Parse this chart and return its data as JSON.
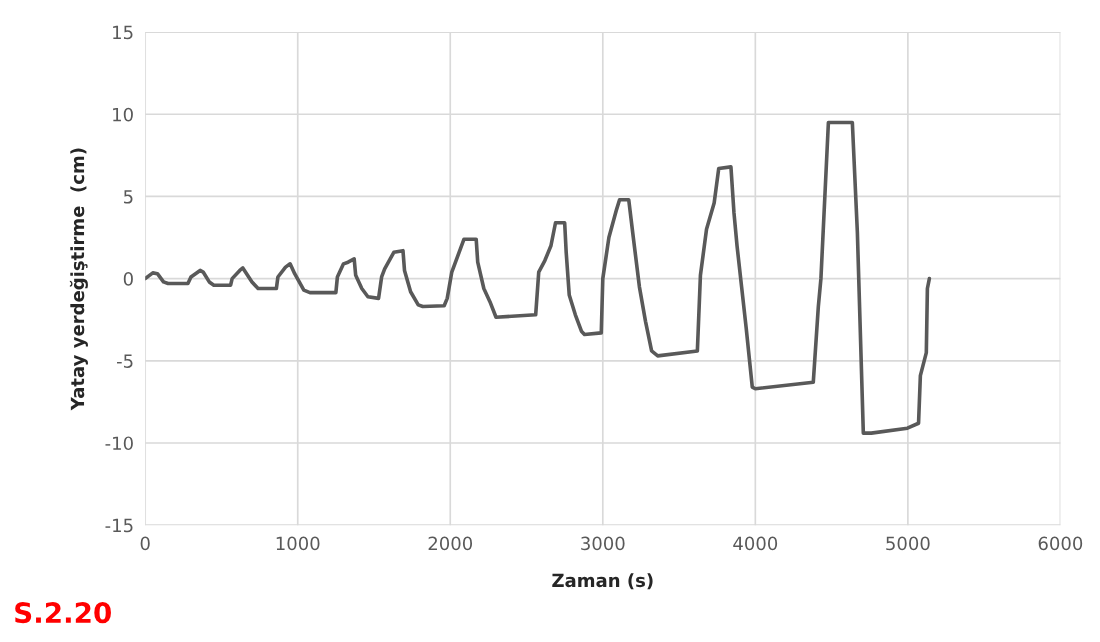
{
  "chart_data": {
    "type": "line",
    "xlabel": "Zaman (s)",
    "ylabel": "Yatay yerdeğiştirme  (cm)",
    "annotations": [
      "S.2.20"
    ],
    "xlim": [
      0,
      6000
    ],
    "xticks": [
      0,
      1000,
      2000,
      3000,
      4000,
      5000,
      6000
    ],
    "ylim": [
      -15,
      15
    ],
    "yticks": [
      -15,
      -10,
      -5,
      0,
      5,
      10,
      15
    ],
    "grid": true,
    "marker": "none",
    "line_style": "solid",
    "series": [
      {
        "color": "#595959",
        "x": [
          0,
          50,
          80,
          120,
          150,
          280,
          300,
          360,
          380,
          420,
          450,
          560,
          570,
          620,
          640,
          700,
          740,
          860,
          870,
          920,
          950,
          980,
          1040,
          1080,
          1250,
          1260,
          1300,
          1330,
          1370,
          1380,
          1420,
          1460,
          1530,
          1550,
          1570,
          1630,
          1690,
          1700,
          1740,
          1790,
          1820,
          1960,
          1980,
          2010,
          2030,
          2090,
          2170,
          2180,
          2220,
          2260,
          2300,
          2560,
          2580,
          2620,
          2660,
          2690,
          2750,
          2760,
          2780,
          2820,
          2860,
          2880,
          2990,
          3000,
          3040,
          3090,
          3110,
          3170,
          3200,
          3240,
          3280,
          3320,
          3360,
          3620,
          3640,
          3680,
          3730,
          3760,
          3840,
          3860,
          3880,
          3910,
          3940,
          3980,
          4000,
          4380,
          4413,
          4430,
          4479,
          4636,
          4669,
          4708,
          4760,
          4997,
          5070,
          5082,
          5121,
          5128,
          5141
        ],
        "values": [
          0,
          0.35,
          0.3,
          -0.2,
          -0.3,
          -0.3,
          0.1,
          0.5,
          0.4,
          -0.2,
          -0.4,
          -0.4,
          0.0,
          0.5,
          0.65,
          -0.2,
          -0.6,
          -0.6,
          0.1,
          0.7,
          0.9,
          0.3,
          -0.7,
          -0.85,
          -0.85,
          0.1,
          0.9,
          1.0,
          1.2,
          0.2,
          -0.6,
          -1.1,
          -1.2,
          0.1,
          0.6,
          1.6,
          1.7,
          0.5,
          -0.8,
          -1.6,
          -1.7,
          -1.65,
          -1.2,
          0.4,
          0.9,
          2.4,
          2.4,
          1.0,
          -0.6,
          -1.4,
          -2.35,
          -2.2,
          0.4,
          1.1,
          2.0,
          3.4,
          3.4,
          1.6,
          -1.0,
          -2.2,
          -3.2,
          -3.4,
          -3.3,
          0.0,
          2.5,
          4.2,
          4.8,
          4.8,
          2.5,
          -0.5,
          -2.6,
          -4.4,
          -4.7,
          -4.4,
          0.2,
          3.0,
          4.6,
          6.7,
          6.8,
          4.0,
          2.0,
          -0.5,
          -3.0,
          -6.6,
          -6.7,
          -6.3,
          -1.7,
          0.0,
          9.5,
          9.5,
          2.8,
          -9.4,
          -9.4,
          -9.1,
          -8.8,
          -5.9,
          -4.5,
          -0.6,
          0
        ]
      }
    ]
  }
}
